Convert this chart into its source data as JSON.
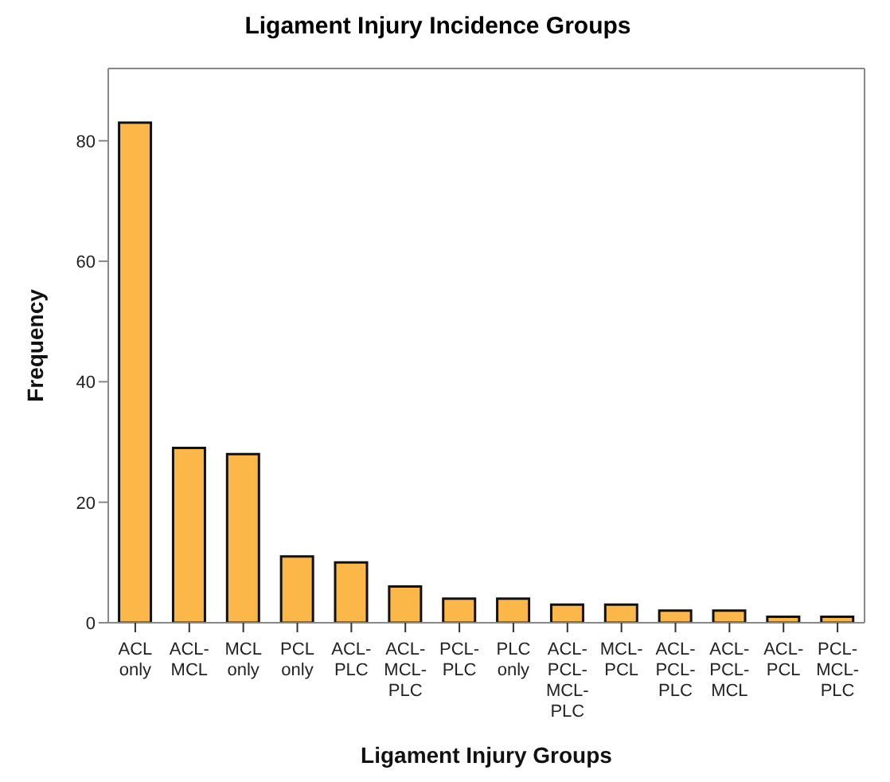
{
  "chart_data": {
    "type": "bar",
    "title": "Ligament Injury Incidence Groups",
    "xlabel": "Ligament Injury Groups",
    "ylabel": "Frequency",
    "categories": [
      "ACL only",
      "ACL-MCL",
      "MCL only",
      "PCL only",
      "ACL-PLC",
      "ACL-MCL-PLC",
      "PCL-PLC",
      "PLC only",
      "ACL-PCL-MCL-PLC",
      "MCL-PCL",
      "ACL-PCL-PLC",
      "ACL-PCL-MCL",
      "ACL-PCL",
      "PCL-MCL-PLC"
    ],
    "values": [
      83,
      29,
      28,
      11,
      10,
      6,
      4,
      4,
      3,
      3,
      2,
      2,
      1,
      1
    ],
    "color": "#fbb848",
    "ylim": [
      0,
      92
    ],
    "yticks": [
      0,
      20,
      40,
      60,
      80
    ]
  }
}
